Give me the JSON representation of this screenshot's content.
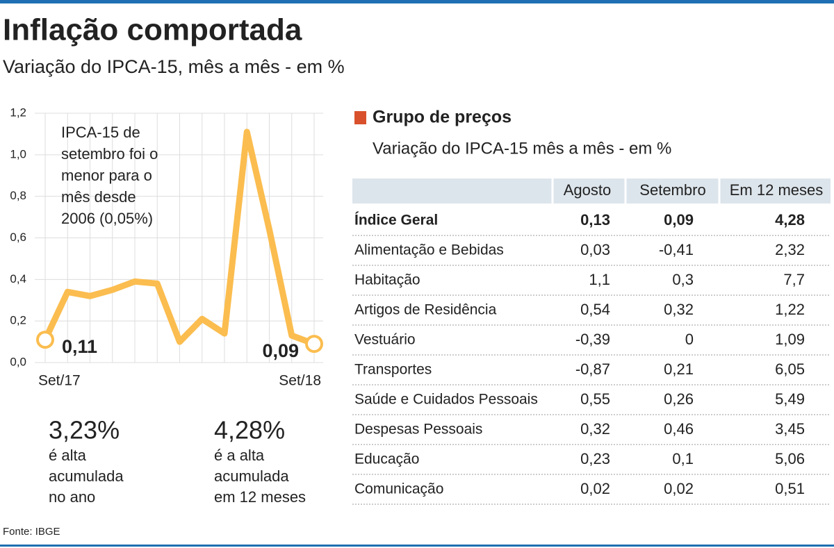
{
  "header": {
    "title": "Inflação comportada",
    "subtitle": "Variação do IPCA-15, mês a mês - em %"
  },
  "chart_data": {
    "type": "line",
    "categories": [
      "Set/17",
      null,
      null,
      null,
      null,
      null,
      null,
      null,
      null,
      null,
      null,
      null,
      "Set/18"
    ],
    "values": [
      0.11,
      0.34,
      0.32,
      0.35,
      0.39,
      0.38,
      0.1,
      0.21,
      0.14,
      1.11,
      0.64,
      0.13,
      0.09
    ],
    "value_labels": [
      "0,11",
      null,
      null,
      null,
      null,
      null,
      null,
      null,
      null,
      null,
      null,
      null,
      "0,09"
    ],
    "color": "#fbbd4f",
    "ylim": [
      0,
      1.2
    ],
    "yticks": [
      {
        "value": 0,
        "label": "0,0"
      },
      {
        "value": 0.2,
        "label": "0,2"
      },
      {
        "value": 0.4,
        "label": "0,4"
      },
      {
        "value": 0.6,
        "label": "0,6"
      },
      {
        "value": 0.8,
        "label": "0,8"
      },
      {
        "value": 1.0,
        "label": "1,0"
      },
      {
        "value": 1.2,
        "label": "1,2"
      }
    ],
    "grid": true,
    "annotation": [
      "IPCA-15 de",
      "setembro foi o",
      "menor para o",
      "mês desde",
      "2006 (0,05%)"
    ]
  },
  "stats": [
    {
      "value": "3,23%",
      "text": [
        "é alta",
        "acumulada",
        "no ano"
      ]
    },
    {
      "value": "4,28%",
      "text": [
        "é a alta",
        "acumulada",
        "em 12 meses"
      ]
    }
  ],
  "table": {
    "title": "Grupo de preços",
    "subtitle": "Variação do IPCA-15 mês a mês - em %",
    "columns": [
      "Agosto",
      "Setembro",
      "Em 12 meses"
    ],
    "rows": [
      {
        "label": "Índice Geral",
        "values": [
          "0,13",
          "0,09",
          "4,28"
        ]
      },
      {
        "label": "Alimentação e Bebidas",
        "values": [
          "0,03",
          "-0,41",
          "2,32"
        ]
      },
      {
        "label": "Habitação",
        "values": [
          "1,1",
          "0,3",
          "7,7"
        ]
      },
      {
        "label": "Artigos de Residência",
        "values": [
          "0,54",
          "0,32",
          "1,22"
        ]
      },
      {
        "label": "Vestuário",
        "values": [
          "-0,39",
          "0",
          "1,09"
        ]
      },
      {
        "label": "Transportes",
        "values": [
          "-0,87",
          "0,21",
          "6,05"
        ]
      },
      {
        "label": "Saúde e Cuidados Pessoais",
        "values": [
          "0,55",
          "0,26",
          "5,49"
        ]
      },
      {
        "label": "Despesas Pessoais",
        "values": [
          "0,32",
          "0,46",
          "3,45"
        ]
      },
      {
        "label": "Educação",
        "values": [
          "0,23",
          "0,1",
          "5,06"
        ]
      },
      {
        "label": "Comunicação",
        "values": [
          "0,02",
          "0,02",
          "0,51"
        ]
      }
    ]
  },
  "source": "Fonte: IBGE"
}
